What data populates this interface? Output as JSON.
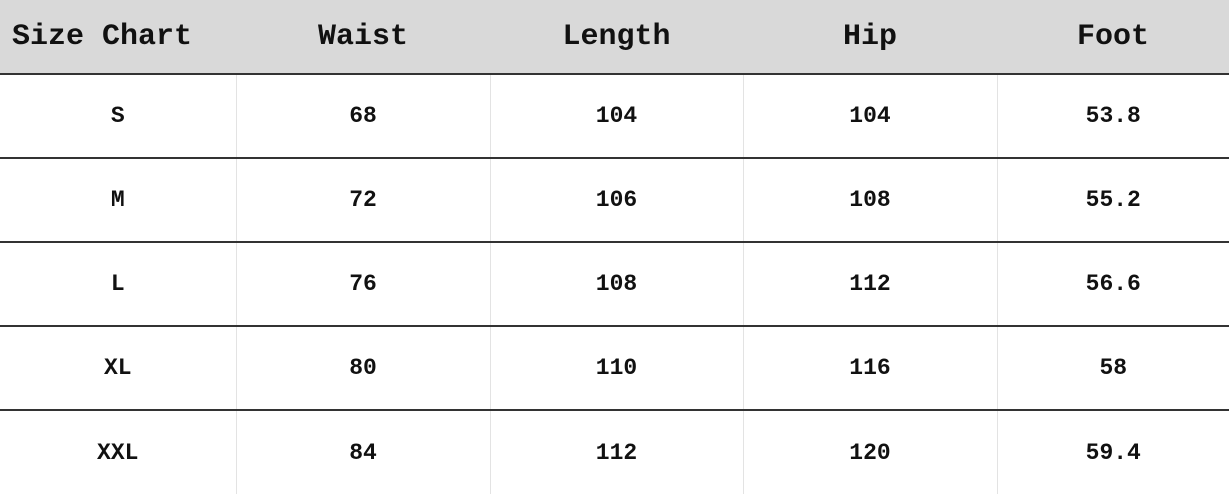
{
  "table": {
    "headers": [
      "Size Chart",
      "Waist",
      "Length",
      "Hip",
      "Foot"
    ],
    "rows": [
      [
        "S",
        "68",
        "104",
        "104",
        "53.8"
      ],
      [
        "M",
        "72",
        "106",
        "108",
        "55.2"
      ],
      [
        "L",
        "76",
        "108",
        "112",
        "56.6"
      ],
      [
        "XL",
        "80",
        "110",
        "116",
        "58"
      ],
      [
        "XXL",
        "84",
        "112",
        "120",
        "59.4"
      ]
    ]
  },
  "colors": {
    "header_bg": "#d9d9d9",
    "row_divider": "#333333",
    "column_divider": "#e3e3e3"
  }
}
